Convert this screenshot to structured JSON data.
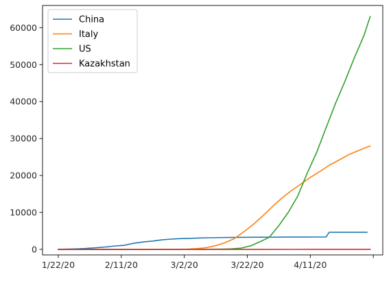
{
  "chart_data": {
    "type": "line",
    "title": "",
    "xlabel": "",
    "ylabel": "",
    "x_start": "1/22/20",
    "x_end": "4/29/20",
    "x_ticks": [
      "1/22/20",
      "2/11/20",
      "3/2/20",
      "3/22/20",
      "4/11/20",
      ""
    ],
    "xlim": [
      "1/17/20",
      "5/4/20"
    ],
    "ylim": [
      -1500,
      66000
    ],
    "y_ticks": [
      0,
      10000,
      20000,
      30000,
      40000,
      50000,
      60000
    ],
    "grid": false,
    "legend_position": "upper-left",
    "series": [
      {
        "name": "China",
        "color": "#1f77b4",
        "points": [
          [
            "1/22/20",
            17
          ],
          [
            "1/25/20",
            56
          ],
          [
            "1/28/20",
            132
          ],
          [
            "1/31/20",
            259
          ],
          [
            "2/3/20",
            426
          ],
          [
            "2/6/20",
            637
          ],
          [
            "2/9/20",
            910
          ],
          [
            "2/12/20",
            1113
          ],
          [
            "2/15/20",
            1665
          ],
          [
            "2/18/20",
            2004
          ],
          [
            "2/21/20",
            2247
          ],
          [
            "2/24/20",
            2595
          ],
          [
            "2/27/20",
            2788
          ],
          [
            "3/1/20",
            2915
          ],
          [
            "3/4/20",
            2984
          ],
          [
            "3/7/20",
            3073
          ],
          [
            "3/10/20",
            3136
          ],
          [
            "3/13/20",
            3180
          ],
          [
            "3/16/20",
            3218
          ],
          [
            "3/19/20",
            3245
          ],
          [
            "3/22/20",
            3261
          ],
          [
            "3/25/20",
            3287
          ],
          [
            "3/28/20",
            3300
          ],
          [
            "3/31/20",
            3309
          ],
          [
            "4/3/20",
            3326
          ],
          [
            "4/6/20",
            3333
          ],
          [
            "4/9/20",
            3339
          ],
          [
            "4/12/20",
            3343
          ],
          [
            "4/15/20",
            3346
          ],
          [
            "4/16/20",
            3346
          ],
          [
            "4/17/20",
            4636
          ],
          [
            "4/20/20",
            4636
          ],
          [
            "4/23/20",
            4636
          ],
          [
            "4/26/20",
            4637
          ],
          [
            "4/29/20",
            4637
          ]
        ]
      },
      {
        "name": "Italy",
        "color": "#ff7f0e",
        "points": [
          [
            "1/22/20",
            0
          ],
          [
            "2/20/20",
            0
          ],
          [
            "2/24/20",
            7
          ],
          [
            "2/28/20",
            29
          ],
          [
            "3/3/20",
            79
          ],
          [
            "3/6/20",
            197
          ],
          [
            "3/9/20",
            463
          ],
          [
            "3/12/20",
            1016
          ],
          [
            "3/15/20",
            1809
          ],
          [
            "3/18/20",
            2978
          ],
          [
            "3/21/20",
            4825
          ],
          [
            "3/24/20",
            6820
          ],
          [
            "3/27/20",
            9134
          ],
          [
            "3/30/20",
            11591
          ],
          [
            "4/2/20",
            13915
          ],
          [
            "4/5/20",
            15887
          ],
          [
            "4/8/20",
            17669
          ],
          [
            "4/11/20",
            19468
          ],
          [
            "4/14/20",
            21067
          ],
          [
            "4/17/20",
            22745
          ],
          [
            "4/20/20",
            24114
          ],
          [
            "4/23/20",
            25549
          ],
          [
            "4/26/20",
            26644
          ],
          [
            "4/29/20",
            27682
          ],
          [
            "4/30/20",
            27967
          ]
        ]
      },
      {
        "name": "US",
        "color": "#2ca02c",
        "points": [
          [
            "1/22/20",
            0
          ],
          [
            "3/1/20",
            1
          ],
          [
            "3/5/20",
            12
          ],
          [
            "3/8/20",
            21
          ],
          [
            "3/11/20",
            36
          ],
          [
            "3/14/20",
            63
          ],
          [
            "3/17/20",
            129
          ],
          [
            "3/20/20",
            326
          ],
          [
            "3/23/20",
            942
          ],
          [
            "3/26/20",
            2042
          ],
          [
            "3/29/20",
            3300
          ],
          [
            "4/1/20",
            6412
          ],
          [
            "4/4/20",
            10000
          ],
          [
            "4/7/20",
            14400
          ],
          [
            "4/10/20",
            20600
          ],
          [
            "4/13/20",
            26200
          ],
          [
            "4/16/20",
            32900
          ],
          [
            "4/19/20",
            39500
          ],
          [
            "4/22/20",
            45500
          ],
          [
            "4/25/20",
            51900
          ],
          [
            "4/28/20",
            57800
          ],
          [
            "4/30/20",
            63000
          ]
        ]
      },
      {
        "name": "Kazakhstan",
        "color": "#d62728",
        "points": [
          [
            "1/22/20",
            0
          ],
          [
            "3/20/20",
            0
          ],
          [
            "3/25/20",
            1
          ],
          [
            "4/5/20",
            6
          ],
          [
            "4/15/20",
            17
          ],
          [
            "4/30/20",
            25
          ]
        ]
      }
    ]
  }
}
